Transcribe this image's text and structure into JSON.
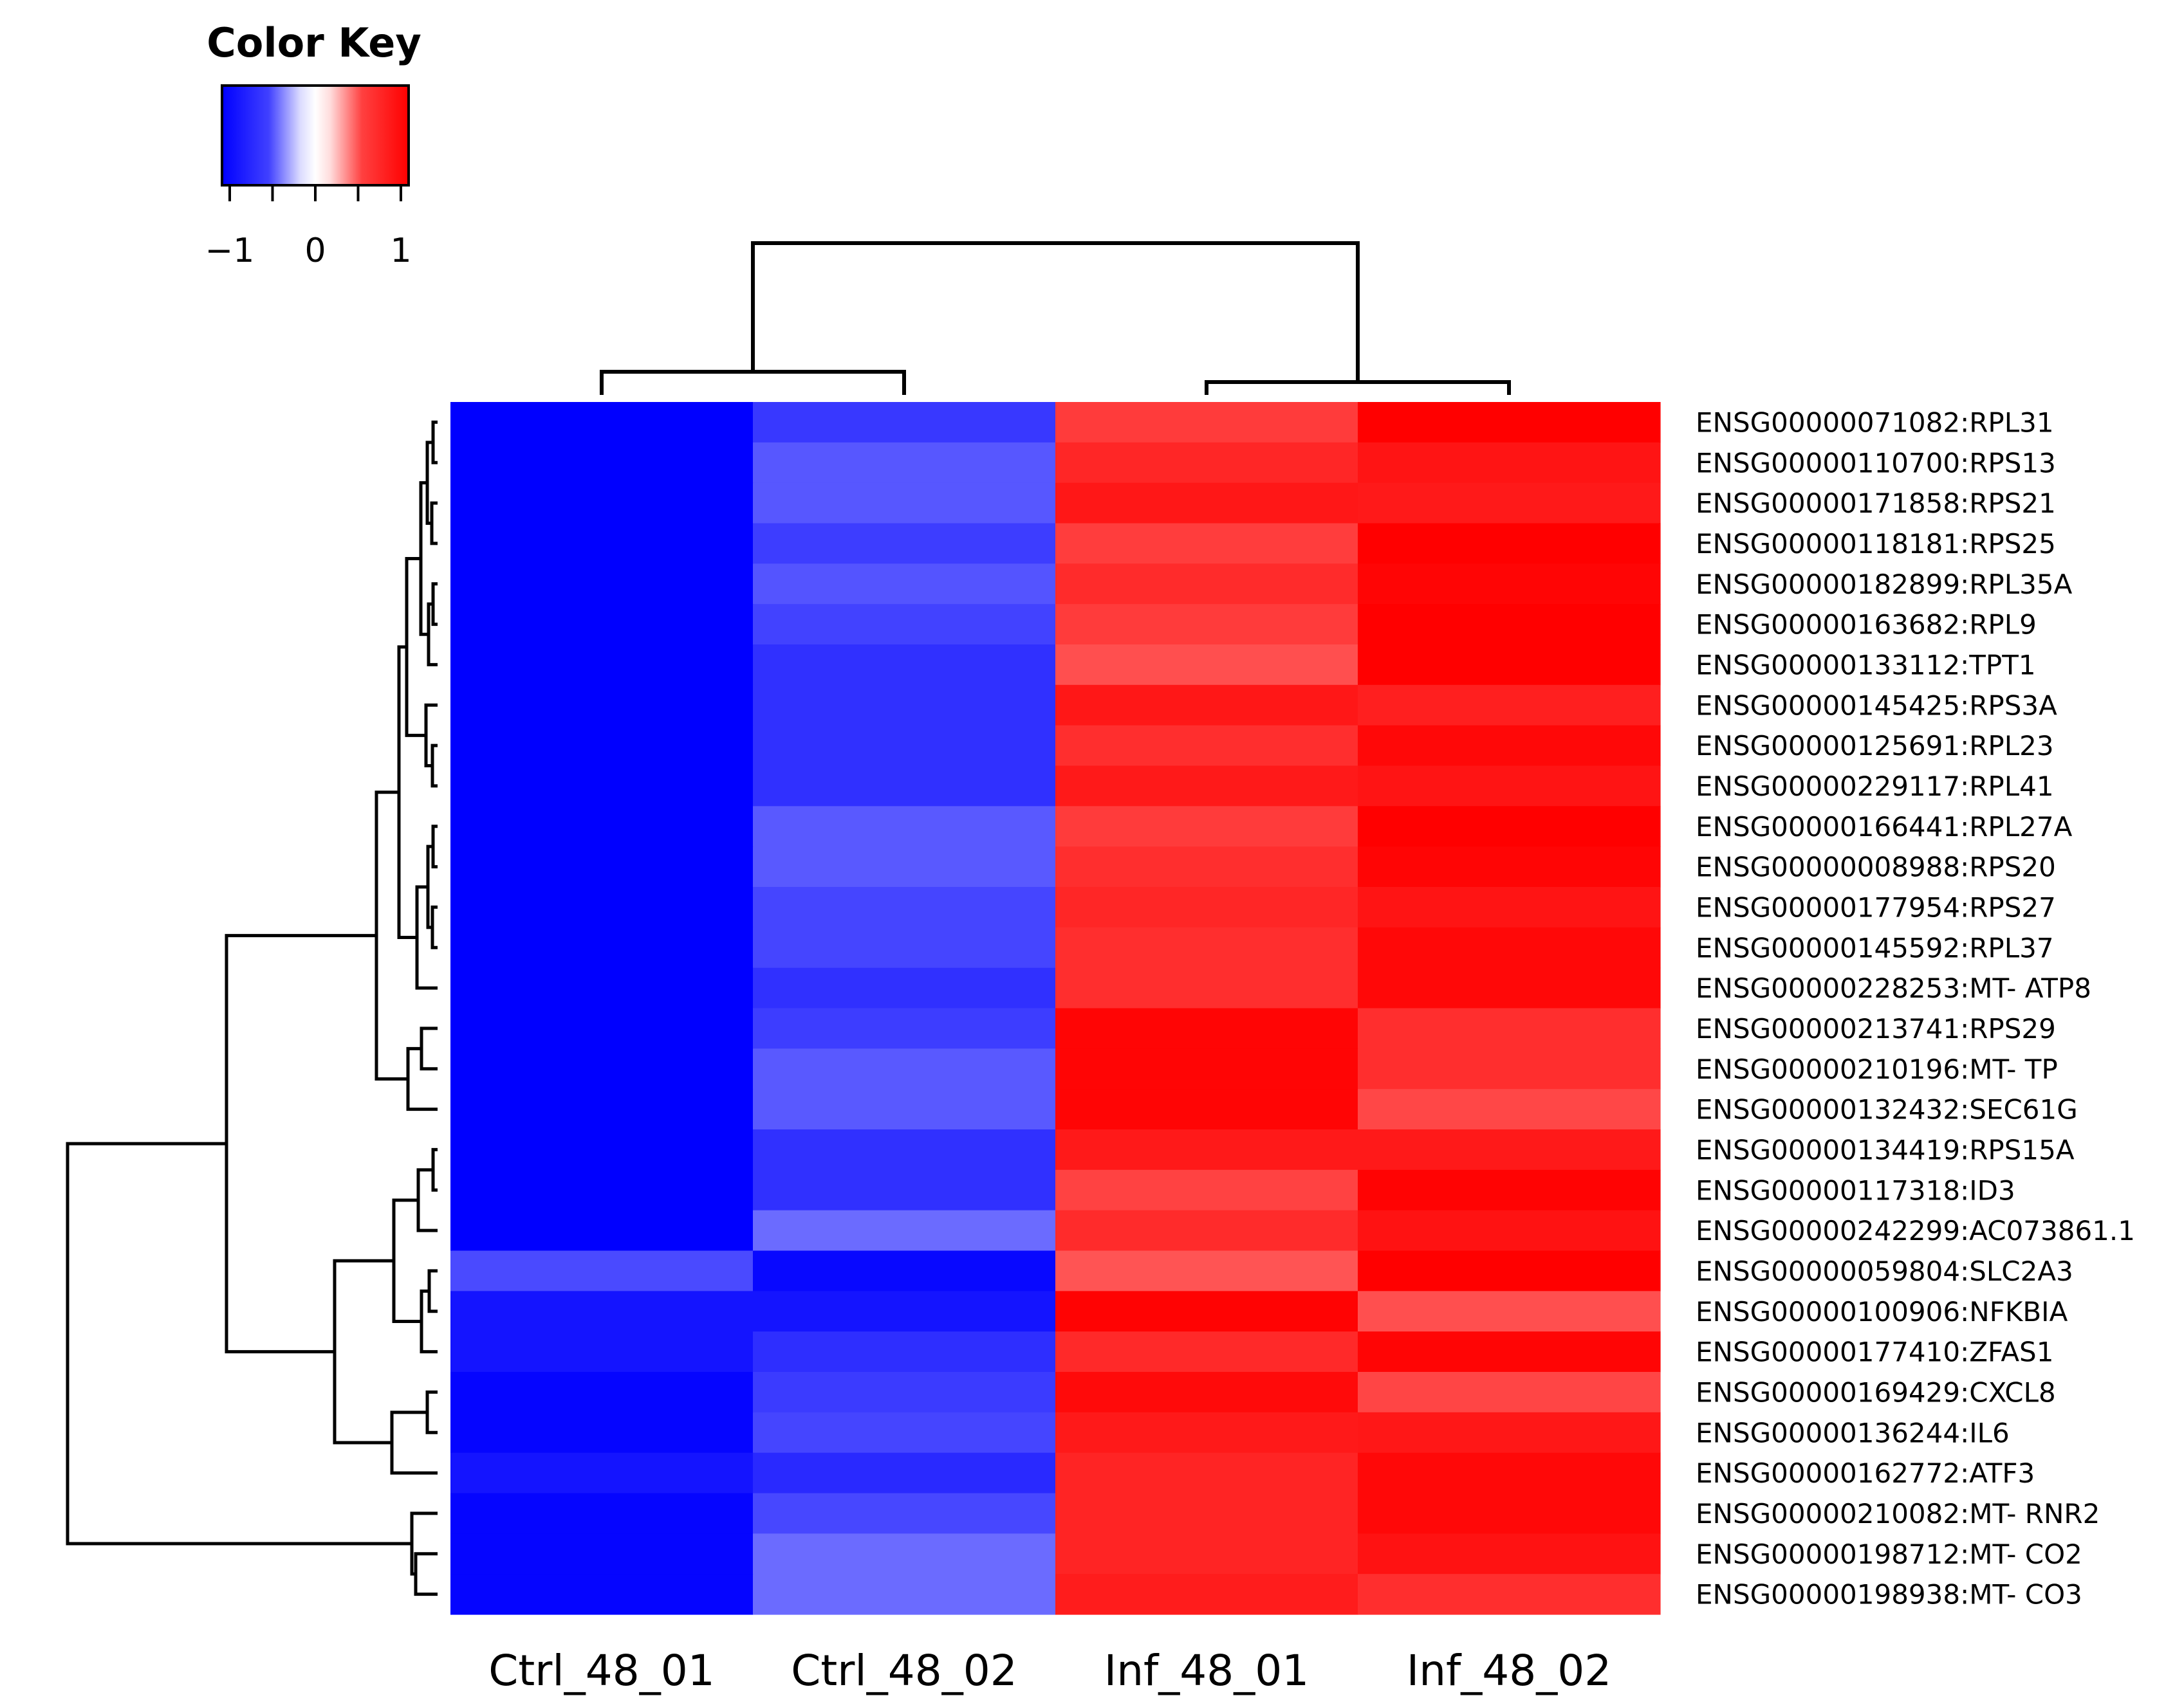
{
  "chart_data": {
    "type": "heatmap",
    "title": "",
    "color_key": {
      "title": "Color Key",
      "range": [
        -1,
        1
      ],
      "tick_labels": [
        "−1",
        "0",
        "1"
      ],
      "low_color": "#0000ff",
      "mid_color": "#ffffff",
      "high_color": "#ff0000"
    },
    "columns": [
      "Ctrl_48_01",
      "Ctrl_48_02",
      "Inf_48_01",
      "Inf_48_02"
    ],
    "rows": [
      "ENSG00000071082:RPL31",
      "ENSG00000110700:RPS13",
      "ENSG00000171858:RPS21",
      "ENSG00000118181:RPS25",
      "ENSG00000182899:RPL35A",
      "ENSG00000163682:RPL9",
      "ENSG00000133112:TPT1",
      "ENSG00000145425:RPS3A",
      "ENSG00000125691:RPL23",
      "ENSG00000229117:RPL41",
      "ENSG00000166441:RPL27A",
      "ENSG00000008988:RPS20",
      "ENSG00000177954:RPS27",
      "ENSG00000145592:RPL37",
      "ENSG00000228253:MT- ATP8",
      "ENSG00000213741:RPS29",
      "ENSG00000210196:MT- TP",
      "ENSG00000132432:SEC61G",
      "ENSG00000134419:RPS15A",
      "ENSG00000117318:ID3",
      "ENSG00000242299:AC073861.1",
      "ENSG00000059804:SLC2A3",
      "ENSG00000100906:NFKBIA",
      "ENSG00000177410:ZFAS1",
      "ENSG00000169429:CXCL8",
      "ENSG00000136244:IL6",
      "ENSG00000162772:ATF3",
      "ENSG00000210082:MT- RNR2",
      "ENSG00000198712:MT- CO2",
      "ENSG00000198938:MT- CO3"
    ],
    "values": [
      [
        -1.0,
        -0.78,
        0.77,
        1.0
      ],
      [
        -1.0,
        -0.66,
        0.85,
        0.92
      ],
      [
        -1.0,
        -0.66,
        0.91,
        0.9
      ],
      [
        -1.0,
        -0.76,
        0.76,
        1.0
      ],
      [
        -1.0,
        -0.67,
        0.83,
        0.98
      ],
      [
        -1.0,
        -0.74,
        0.77,
        1.0
      ],
      [
        -1.0,
        -0.81,
        0.69,
        1.0
      ],
      [
        -1.0,
        -0.81,
        0.91,
        0.88
      ],
      [
        -1.0,
        -0.81,
        0.82,
        0.97
      ],
      [
        -1.0,
        -0.81,
        0.9,
        0.92
      ],
      [
        -1.0,
        -0.65,
        0.77,
        1.0
      ],
      [
        -1.0,
        -0.65,
        0.82,
        0.98
      ],
      [
        -1.0,
        -0.73,
        0.85,
        0.92
      ],
      [
        -1.0,
        -0.73,
        0.82,
        0.97
      ],
      [
        -1.0,
        -0.81,
        0.82,
        0.97
      ],
      [
        -1.0,
        -0.76,
        0.98,
        0.82
      ],
      [
        -1.0,
        -0.65,
        0.98,
        0.82
      ],
      [
        -1.0,
        -0.65,
        0.98,
        0.72
      ],
      [
        -1.0,
        -0.81,
        0.9,
        0.9
      ],
      [
        -1.0,
        -0.81,
        0.74,
        0.99
      ],
      [
        -1.0,
        -0.58,
        0.83,
        0.93
      ],
      [
        -0.71,
        -0.97,
        0.67,
        1.0
      ],
      [
        -0.92,
        -0.92,
        0.99,
        0.69
      ],
      [
        -0.92,
        -0.82,
        0.84,
        0.98
      ],
      [
        -0.98,
        -0.77,
        0.96,
        0.73
      ],
      [
        -0.98,
        -0.73,
        0.9,
        0.91
      ],
      [
        -0.92,
        -0.84,
        0.86,
        0.97
      ],
      [
        -0.98,
        -0.72,
        0.86,
        0.97
      ],
      [
        -0.98,
        -0.58,
        0.86,
        0.93
      ],
      [
        -0.98,
        -0.58,
        0.89,
        0.82
      ]
    ]
  }
}
